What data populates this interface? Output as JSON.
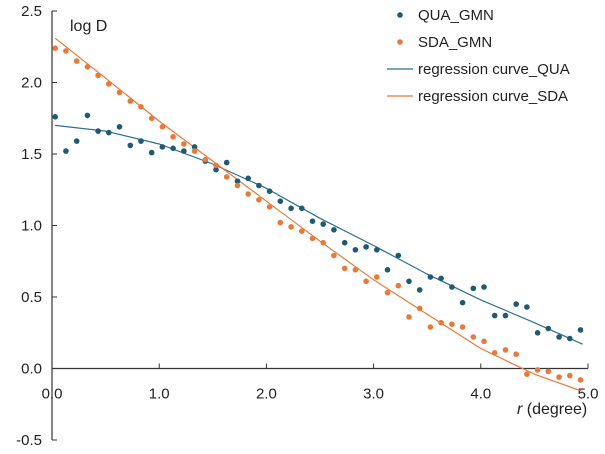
{
  "chart_data": {
    "type": "scatter",
    "ylabel": "log D",
    "xlabel_italic": "r",
    "xlabel_rest": " (degree)",
    "xlim": [
      0,
      5
    ],
    "ylim": [
      -0.5,
      2.5
    ],
    "x_ticks": [
      0,
      1,
      2,
      3,
      4,
      5
    ],
    "x_tick_labels": [
      "0.0",
      "1.0",
      "2.0",
      "3.0",
      "4.0",
      "5.0"
    ],
    "y_ticks": [
      -0.5,
      0,
      0.5,
      1,
      1.5,
      2,
      2.5
    ],
    "y_tick_labels": [
      "-0.5",
      "0.0",
      "0.5",
      "1.0",
      "1.5",
      "2.0",
      "2.5"
    ],
    "grid": false,
    "legend_position": "top-right",
    "series": [
      {
        "name": "QUA_GMN",
        "kind": "points",
        "color": "#1f5a73",
        "x": [
          0.03,
          0.13,
          0.23,
          0.33,
          0.43,
          0.53,
          0.63,
          0.73,
          0.83,
          0.93,
          1.03,
          1.13,
          1.23,
          1.33,
          1.43,
          1.53,
          1.63,
          1.73,
          1.83,
          1.93,
          2.03,
          2.13,
          2.23,
          2.33,
          2.43,
          2.53,
          2.63,
          2.73,
          2.83,
          2.93,
          3.03,
          3.13,
          3.23,
          3.33,
          3.43,
          3.53,
          3.63,
          3.73,
          3.83,
          3.93,
          4.03,
          4.13,
          4.23,
          4.33,
          4.43,
          4.53,
          4.63,
          4.73,
          4.83,
          4.93
        ],
        "y": [
          1.76,
          1.52,
          1.59,
          1.77,
          1.66,
          1.65,
          1.69,
          1.56,
          1.59,
          1.51,
          1.55,
          1.54,
          1.52,
          1.55,
          1.45,
          1.39,
          1.44,
          1.31,
          1.33,
          1.28,
          1.24,
          1.17,
          1.12,
          1.12,
          1.03,
          1.01,
          0.97,
          0.88,
          0.83,
          0.85,
          0.83,
          0.69,
          0.79,
          0.61,
          0.55,
          0.64,
          0.63,
          0.57,
          0.46,
          0.56,
          0.57,
          0.37,
          0.37,
          0.45,
          0.43,
          0.25,
          0.28,
          0.22,
          0.21,
          0.27
        ]
      },
      {
        "name": "SDA_GMN",
        "kind": "points",
        "color": "#e8793a",
        "x": [
          0.03,
          0.13,
          0.23,
          0.33,
          0.43,
          0.53,
          0.63,
          0.73,
          0.83,
          0.93,
          1.03,
          1.13,
          1.23,
          1.33,
          1.43,
          1.53,
          1.63,
          1.73,
          1.83,
          1.93,
          2.03,
          2.13,
          2.23,
          2.33,
          2.43,
          2.53,
          2.63,
          2.73,
          2.83,
          2.93,
          3.03,
          3.13,
          3.23,
          3.33,
          3.43,
          3.53,
          3.63,
          3.73,
          3.83,
          3.93,
          4.03,
          4.13,
          4.23,
          4.33,
          4.43,
          4.53,
          4.63,
          4.73,
          4.83,
          4.93
        ],
        "y": [
          2.24,
          2.22,
          2.15,
          2.11,
          2.05,
          1.99,
          1.93,
          1.87,
          1.83,
          1.75,
          1.69,
          1.62,
          1.57,
          1.52,
          1.46,
          1.42,
          1.34,
          1.28,
          1.22,
          1.18,
          1.13,
          1.02,
          0.99,
          0.96,
          0.91,
          0.88,
          0.79,
          0.7,
          0.69,
          0.61,
          0.64,
          0.53,
          0.58,
          0.36,
          0.42,
          0.29,
          0.32,
          0.31,
          0.29,
          0.22,
          0.19,
          0.11,
          0.13,
          0.1,
          -0.04,
          -0.01,
          -0.02,
          -0.06,
          -0.05,
          -0.08
        ]
      },
      {
        "name": "regression curve_QUA",
        "kind": "line",
        "color": "#2a6f8f",
        "x": [
          0.03,
          0.5,
          1.0,
          1.5,
          2.0,
          2.5,
          3.0,
          3.5,
          4.0,
          4.5,
          4.95
        ],
        "y": [
          1.7,
          1.66,
          1.57,
          1.43,
          1.26,
          1.05,
          0.86,
          0.66,
          0.48,
          0.32,
          0.17
        ]
      },
      {
        "name": "regression curve_SDA",
        "kind": "line",
        "color": "#e8793a",
        "x": [
          0.03,
          0.5,
          1.0,
          1.5,
          2.0,
          2.5,
          3.0,
          3.5,
          4.0,
          4.5,
          4.95
        ],
        "y": [
          2.31,
          2.03,
          1.73,
          1.45,
          1.17,
          0.89,
          0.62,
          0.38,
          0.14,
          -0.04,
          -0.16
        ]
      }
    ]
  }
}
